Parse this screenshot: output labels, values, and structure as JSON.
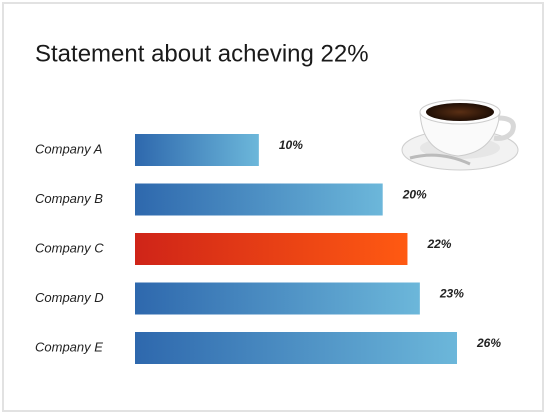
{
  "chart_data": {
    "type": "bar",
    "orientation": "horizontal",
    "title": "Statement about acheving 22%",
    "categories": [
      "Company A",
      "Company B",
      "Company C",
      "Company D",
      "Company E"
    ],
    "values": [
      10,
      20,
      22,
      23,
      26
    ],
    "value_labels": [
      "10%",
      "20%",
      "22%",
      "23%",
      "26%"
    ],
    "colors": [
      [
        "#2e68ad",
        "#6cb7da"
      ],
      [
        "#2e68ad",
        "#6cb7da"
      ],
      [
        "#cf2418",
        "#ff5a12"
      ],
      [
        "#2e68ad",
        "#6cb7da"
      ],
      [
        "#2e68ad",
        "#6cb7da"
      ]
    ]
  }
}
